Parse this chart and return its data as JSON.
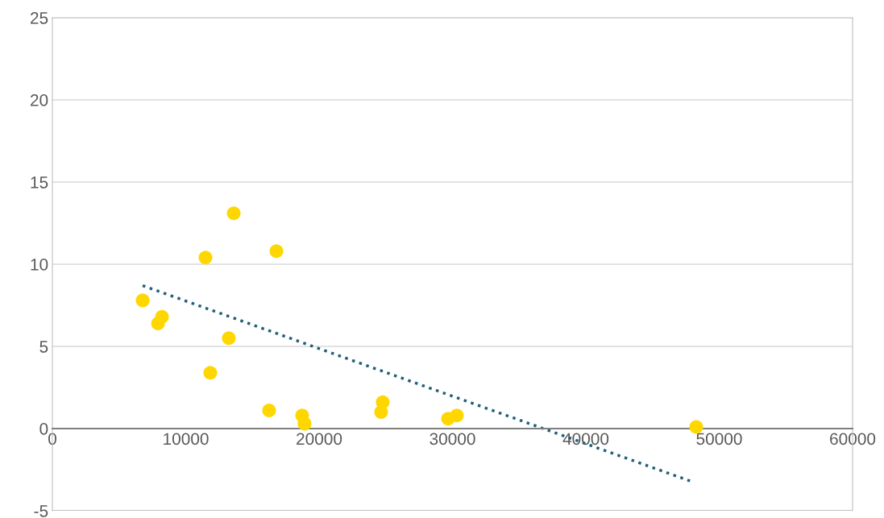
{
  "chart_data": {
    "type": "scatter",
    "xlim": [
      0,
      60000
    ],
    "ylim": [
      -5,
      25
    ],
    "xticks": [
      0,
      10000,
      20000,
      30000,
      40000,
      50000,
      60000
    ],
    "yticks": [
      -5,
      0,
      5,
      10,
      15,
      20,
      25
    ],
    "grid": "y",
    "legend": false,
    "marker": "circle",
    "series": [
      {
        "color": "#ffd700",
        "x": [
          6770,
          7920,
          8220,
          11480,
          11840,
          13230,
          13600,
          16250,
          16800,
          18730,
          18910,
          24650,
          24770,
          29670,
          30330,
          48280
        ],
        "values": [
          7.8,
          6.4,
          6.8,
          10.4,
          3.4,
          5.5,
          13.1,
          1.1,
          10.8,
          0.8,
          0.3,
          1.0,
          1.6,
          0.6,
          0.8,
          0.1
        ]
      },
      {
        "type": "line",
        "color": "#1f5f7a",
        "line_style": "dotted",
        "marker": "none",
        "x": [
          6770,
          47860
        ],
        "values": [
          8.7,
          -3.2
        ]
      }
    ]
  }
}
